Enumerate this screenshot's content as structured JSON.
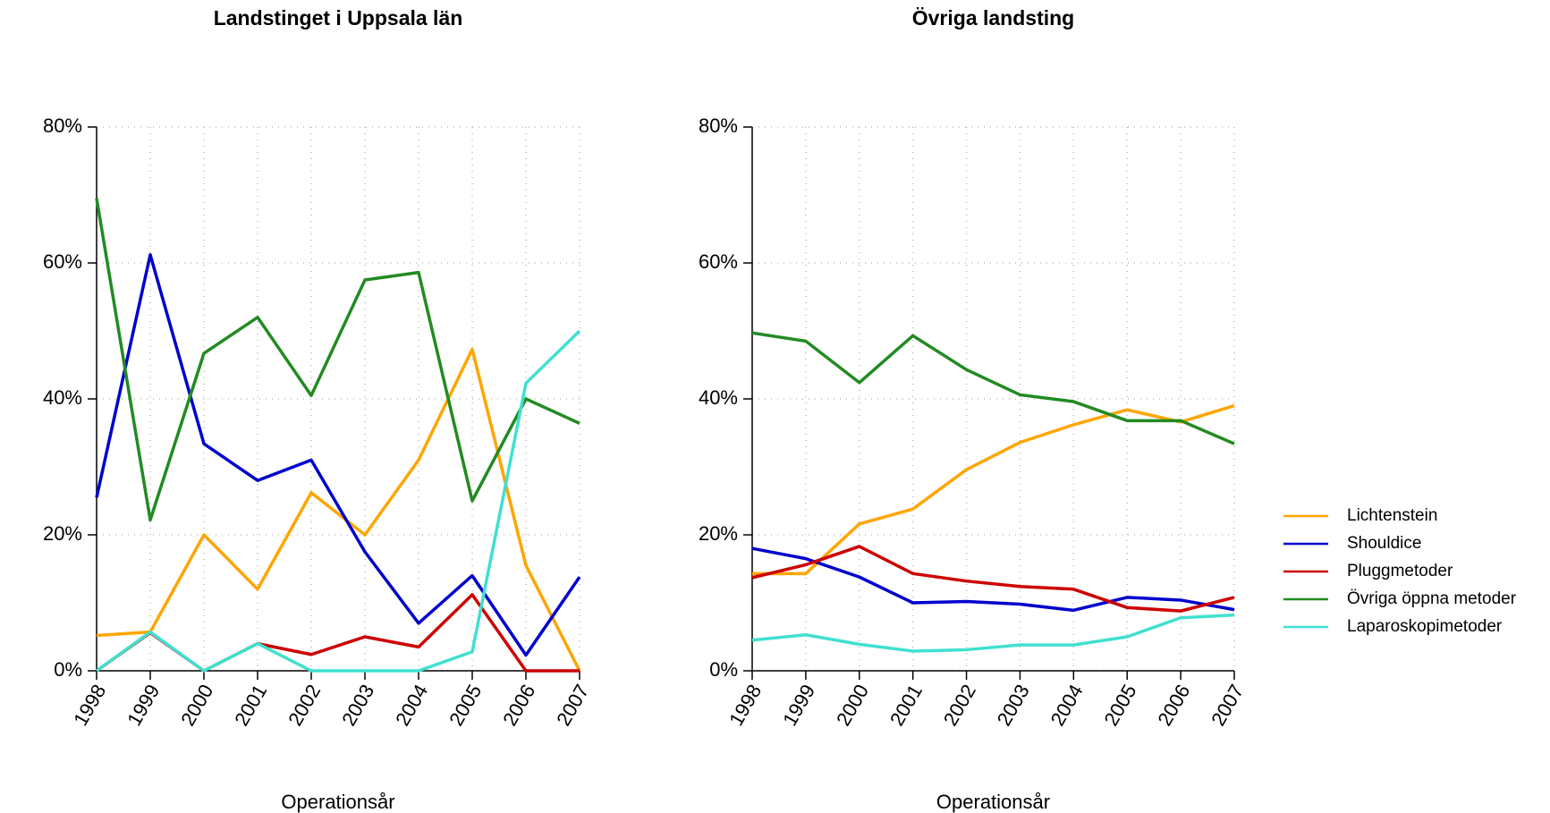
{
  "chart_data": [
    {
      "type": "line",
      "title": "Landstinget i Uppsala län",
      "xlabel": "Operationsår",
      "categories": [
        "1998",
        "1999",
        "2000",
        "2001",
        "2002",
        "2003",
        "2004",
        "2005",
        "2006",
        "2007"
      ],
      "ylim": [
        0,
        80
      ],
      "yticks": [
        {
          "value": 0,
          "label": "0%"
        },
        {
          "value": 20,
          "label": "20%"
        },
        {
          "value": 40,
          "label": "40%"
        },
        {
          "value": 60,
          "label": "60%"
        },
        {
          "value": 80,
          "label": "80%"
        }
      ],
      "grid": true,
      "series": [
        {
          "name": "Lichtenstein",
          "color": "#ffa500",
          "values": [
            5.2,
            5.7,
            20,
            12,
            26.2,
            20,
            31,
            47.3,
            15.5,
            0
          ]
        },
        {
          "name": "Shouldice",
          "color": "#0000cd",
          "values": [
            25.5,
            61.2,
            33.4,
            28,
            31,
            17.5,
            7,
            14,
            2.3,
            13.8
          ]
        },
        {
          "name": "Pluggmetoder",
          "color": "#cd0000",
          "values": [
            0,
            5.6,
            0,
            4,
            2.4,
            5,
            3.5,
            11.2,
            0,
            0
          ]
        },
        {
          "name": "Övriga öppna metoder",
          "color": "#228b22",
          "values": [
            69.5,
            22.2,
            46.7,
            52,
            40.5,
            57.5,
            58.6,
            25,
            40,
            36.4
          ]
        },
        {
          "name": "Laparoskopimetoder",
          "color": "#40e0d0",
          "values": [
            0,
            5.7,
            0,
            4,
            0,
            0,
            0,
            2.8,
            42.3,
            50
          ]
        }
      ]
    },
    {
      "type": "line",
      "title": "Övriga landsting",
      "xlabel": "Operationsår",
      "categories": [
        "1998",
        "1999",
        "2000",
        "2001",
        "2002",
        "2003",
        "2004",
        "2005",
        "2006",
        "2007"
      ],
      "ylim": [
        0,
        80
      ],
      "yticks": [
        {
          "value": 0,
          "label": "0%"
        },
        {
          "value": 20,
          "label": "20%"
        },
        {
          "value": 40,
          "label": "40%"
        },
        {
          "value": 60,
          "label": "60%"
        },
        {
          "value": 80,
          "label": "80%"
        }
      ],
      "grid": true,
      "series": [
        {
          "name": "Lichtenstein",
          "color": "#ffa500",
          "values": [
            14.3,
            14.3,
            21.6,
            23.8,
            29.6,
            33.6,
            36.2,
            38.4,
            36.6,
            39
          ]
        },
        {
          "name": "Shouldice",
          "color": "#0000cd",
          "values": [
            18,
            16.5,
            13.8,
            10,
            10.2,
            9.8,
            8.9,
            10.8,
            10.4,
            9
          ]
        },
        {
          "name": "Pluggmetoder",
          "color": "#cd0000",
          "values": [
            13.7,
            15.6,
            18.3,
            14.3,
            13.2,
            12.4,
            12,
            9.3,
            8.8,
            10.8
          ]
        },
        {
          "name": "Övriga öppna metoder",
          "color": "#228b22",
          "values": [
            49.7,
            48.5,
            42.4,
            49.3,
            44.3,
            40.6,
            39.6,
            36.8,
            36.8,
            33.4
          ]
        },
        {
          "name": "Laparoskopimetoder",
          "color": "#40e0d0",
          "values": [
            4.5,
            5.3,
            3.9,
            2.9,
            3.1,
            3.8,
            3.8,
            5,
            7.8,
            8.2
          ]
        }
      ]
    }
  ]
}
